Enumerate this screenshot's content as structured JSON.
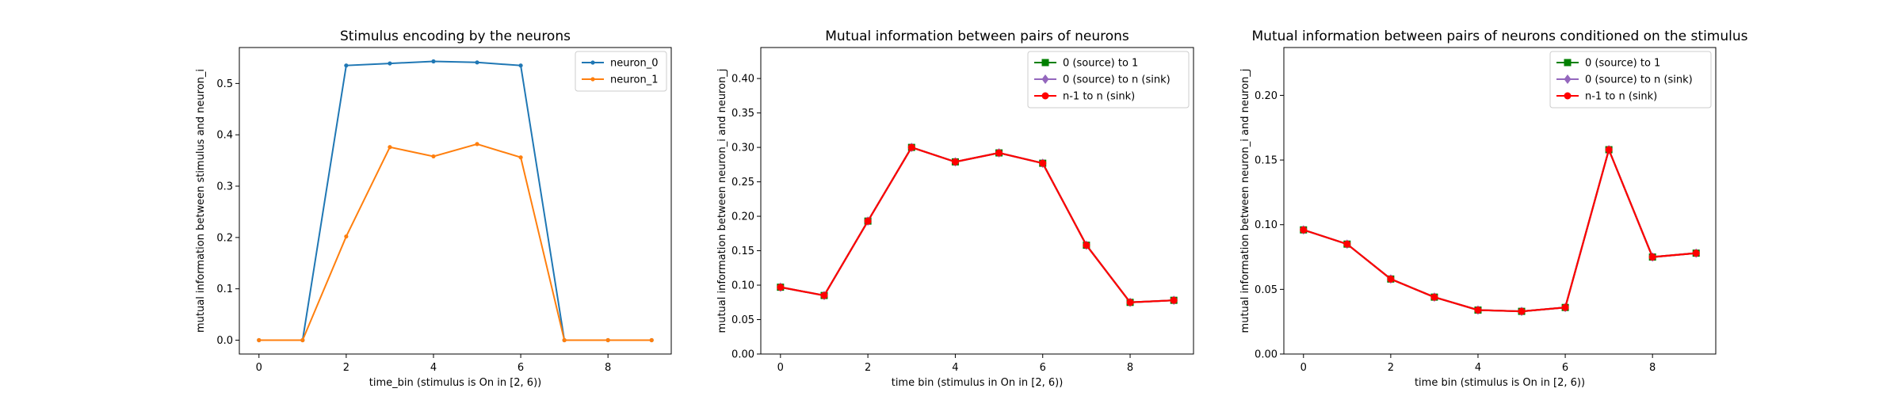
{
  "chart_data": [
    {
      "type": "line",
      "title": "Stimulus encoding by the neurons",
      "xlabel": "time_bin (stimulus is On in [2, 6))",
      "ylabel": "mutual information between stimulus and neuron_i",
      "xlim": [
        -0.45,
        9.45
      ],
      "ylim": [
        -0.027,
        0.57
      ],
      "xticks": [
        0,
        2,
        4,
        6,
        8
      ],
      "yticks": [
        0.0,
        0.1,
        0.2,
        0.3,
        0.4,
        0.5
      ],
      "ytick_labels": [
        "0.0",
        "0.1",
        "0.2",
        "0.3",
        "0.4",
        "0.5"
      ],
      "legend_position": "top-right",
      "x": [
        0,
        1,
        2,
        3,
        4,
        5,
        6,
        7,
        8,
        9
      ],
      "series": [
        {
          "name": "neuron_0",
          "color": "#1f77b4",
          "marker": "dot",
          "values": [
            0.0,
            0.0,
            0.535,
            0.539,
            0.543,
            0.541,
            0.535,
            0.0,
            0.0,
            0.0
          ]
        },
        {
          "name": "neuron_1",
          "color": "#ff7f0e",
          "marker": "dot",
          "values": [
            0.0,
            0.0,
            0.202,
            0.376,
            0.358,
            0.382,
            0.356,
            0.0,
            0.0,
            0.0
          ]
        }
      ]
    },
    {
      "type": "line",
      "title": "Mutual information between pairs of neurons",
      "xlabel": "time bin (stimulus in On in [2, 6))",
      "ylabel": "mutual information between neuron_i and neuron_j",
      "xlim": [
        -0.45,
        9.45
      ],
      "ylim": [
        0.0,
        0.445
      ],
      "xticks": [
        0,
        2,
        4,
        6,
        8
      ],
      "yticks": [
        0.0,
        0.05,
        0.1,
        0.15,
        0.2,
        0.25,
        0.3,
        0.35,
        0.4
      ],
      "ytick_labels": [
        "0.00",
        "0.05",
        "0.10",
        "0.15",
        "0.20",
        "0.25",
        "0.30",
        "0.35",
        "0.40"
      ],
      "legend_position": "top-right",
      "x": [
        0,
        1,
        2,
        3,
        4,
        5,
        6,
        7,
        8,
        9
      ],
      "series": [
        {
          "name": "0 (source) to 1",
          "color": "#008000",
          "marker": "square",
          "values": [
            0.097,
            0.085,
            0.193,
            0.3,
            0.279,
            0.292,
            0.277,
            0.158,
            0.075,
            0.078
          ]
        },
        {
          "name": "0 (source) to n (sink)",
          "color": "#9467bd",
          "marker": "diamond",
          "values": [
            0.097,
            0.085,
            0.193,
            0.3,
            0.279,
            0.292,
            0.277,
            0.158,
            0.075,
            0.078
          ]
        },
        {
          "name": "n-1 to n (sink)",
          "color": "#ff0000",
          "marker": "dot",
          "values": [
            0.097,
            0.085,
            0.193,
            0.3,
            0.279,
            0.292,
            0.277,
            0.158,
            0.075,
            0.078
          ]
        }
      ]
    },
    {
      "type": "line",
      "title": "Mutual information between pairs of neurons conditioned on the stimulus",
      "xlabel": "time bin (stimulus is On in [2, 6))",
      "ylabel": "mutual information between neuron_i and neuron_j",
      "xlim": [
        -0.45,
        9.45
      ],
      "ylim": [
        0.0,
        0.237
      ],
      "xticks": [
        0,
        2,
        4,
        6,
        8
      ],
      "yticks": [
        0.0,
        0.05,
        0.1,
        0.15,
        0.2
      ],
      "ytick_labels": [
        "0.00",
        "0.05",
        "0.10",
        "0.15",
        "0.20"
      ],
      "legend_position": "top-right",
      "x": [
        0,
        1,
        2,
        3,
        4,
        5,
        6,
        7,
        8,
        9
      ],
      "series": [
        {
          "name": "0 (source) to 1",
          "color": "#008000",
          "marker": "square",
          "values": [
            0.096,
            0.085,
            0.058,
            0.044,
            0.034,
            0.033,
            0.036,
            0.158,
            0.075,
            0.078
          ]
        },
        {
          "name": "0 (source) to n (sink)",
          "color": "#9467bd",
          "marker": "diamond",
          "values": [
            0.096,
            0.085,
            0.058,
            0.044,
            0.034,
            0.033,
            0.036,
            0.158,
            0.075,
            0.078
          ]
        },
        {
          "name": "n-1 to n (sink)",
          "color": "#ff0000",
          "marker": "dot",
          "values": [
            0.096,
            0.085,
            0.058,
            0.044,
            0.034,
            0.033,
            0.036,
            0.158,
            0.075,
            0.078
          ]
        }
      ]
    }
  ]
}
